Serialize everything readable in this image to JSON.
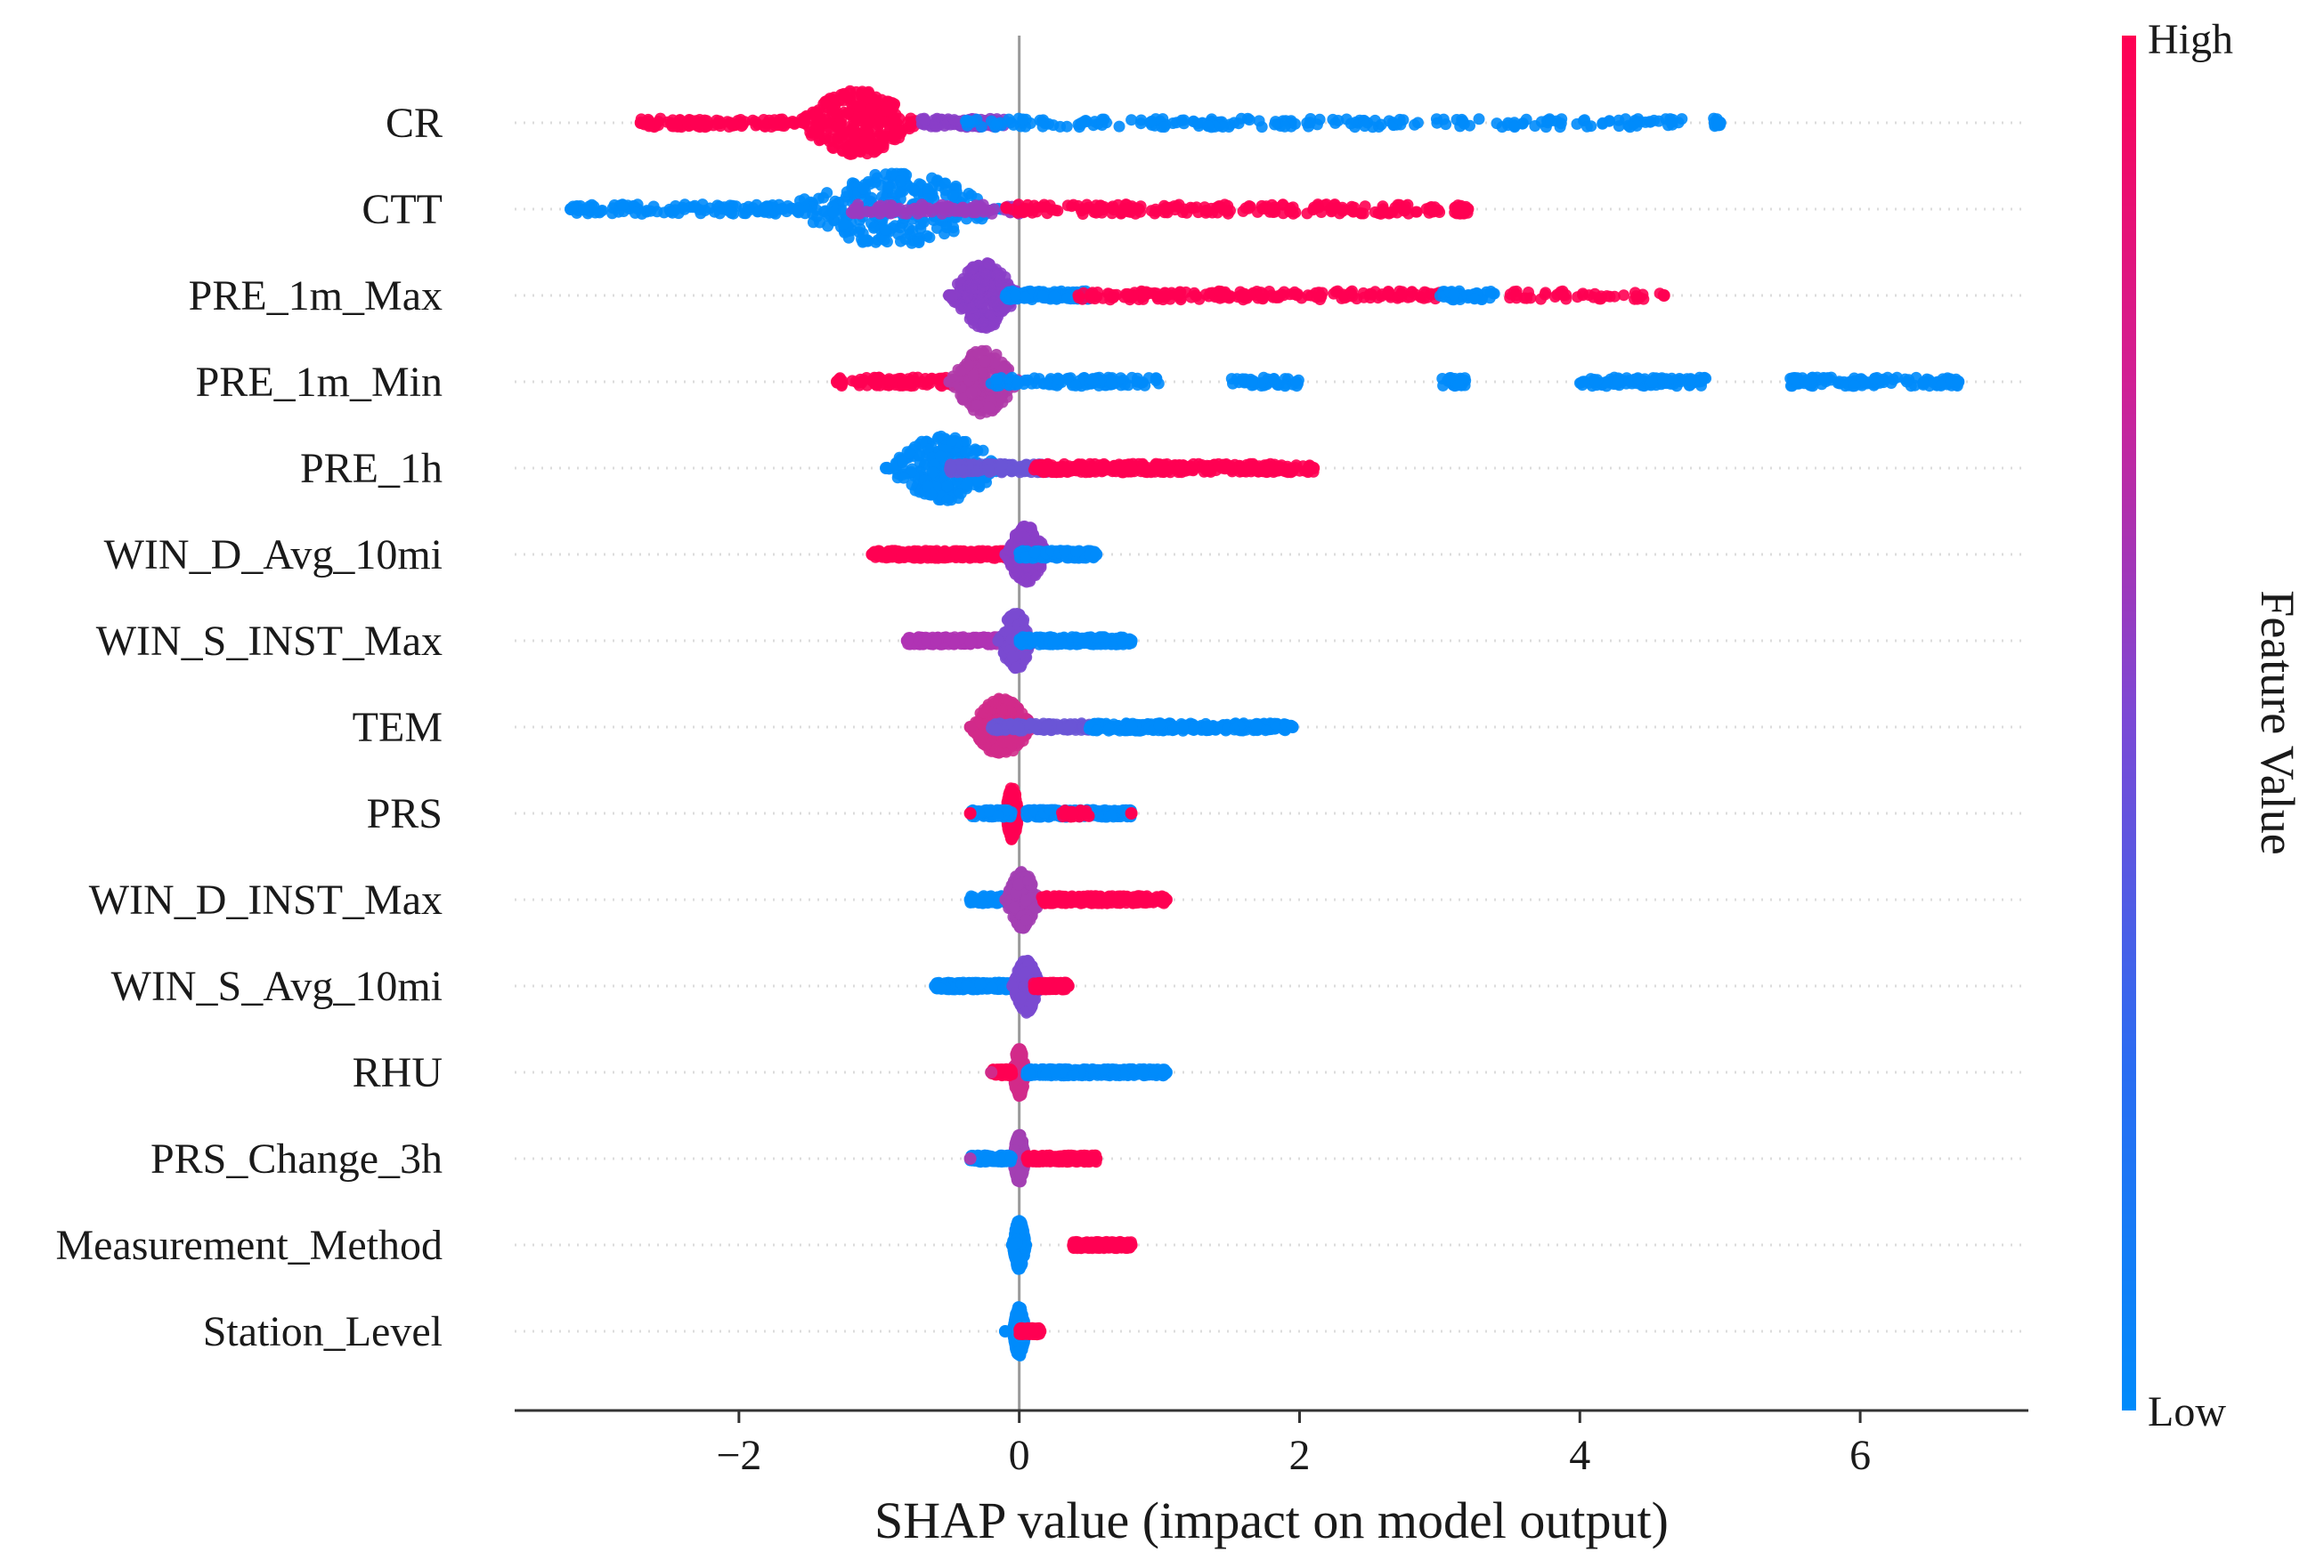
{
  "chart_data": {
    "type": "scatter",
    "subtype": "shap_beeswarm_summary",
    "xlabel": "SHAP value (impact on model output)",
    "xlim": [
      -3.6,
      7.2
    ],
    "xticks": [
      {
        "value": -2,
        "label": "−2"
      },
      {
        "value": 0,
        "label": "0"
      },
      {
        "value": 2,
        "label": "2"
      },
      {
        "value": 4,
        "label": "4"
      },
      {
        "value": 6,
        "label": "6"
      }
    ],
    "colorbar": {
      "title": "Feature Value",
      "high_label": "High",
      "low_label": "Low",
      "high_color": "#ff0052",
      "low_color": "#008bfb"
    },
    "features": [
      {
        "name": "CR",
        "min": -2.7,
        "max": 5.0,
        "spread": 0.34,
        "segments": [
          {
            "from": -2.7,
            "to": -1.6,
            "color": "#ff0052",
            "weight": 0.14
          },
          {
            "from": -1.6,
            "to": -0.7,
            "color": "#ff0052",
            "weight": 0.42,
            "bulge": true
          },
          {
            "from": -0.7,
            "to": -0.1,
            "color": "#8a3ec8",
            "weight": 0.12
          },
          {
            "from": -0.4,
            "to": 4.75,
            "color": "#008bfb",
            "weight": 0.3
          },
          {
            "from": 4.95,
            "to": 5.0,
            "color": "#008bfb",
            "weight": 0.02
          }
        ]
      },
      {
        "name": "CTT",
        "min": -3.2,
        "max": 3.2,
        "spread": 0.38,
        "segments": [
          {
            "from": -3.2,
            "to": -1.7,
            "color": "#008bfb",
            "weight": 0.14
          },
          {
            "from": -1.7,
            "to": -0.1,
            "color": "#008bfb",
            "weight": 0.4,
            "bulge": true
          },
          {
            "from": -1.2,
            "to": 0.0,
            "color": "#9a3bc0",
            "weight": 0.14
          },
          {
            "from": -0.1,
            "to": 3.0,
            "color": "#ff0052",
            "weight": 0.28
          },
          {
            "from": 3.1,
            "to": 3.2,
            "color": "#ff0052",
            "weight": 0.04
          }
        ]
      },
      {
        "name": "PRE_1m_Max",
        "min": -0.5,
        "max": 4.6,
        "spread": 0.34,
        "segments": [
          {
            "from": -0.5,
            "to": 0.0,
            "color": "#8a3ec8",
            "weight": 0.4,
            "bulge": true
          },
          {
            "from": -0.1,
            "to": 0.5,
            "color": "#008bfb",
            "weight": 0.2
          },
          {
            "from": 0.4,
            "to": 3.0,
            "color": "#ff0052",
            "weight": 0.28
          },
          {
            "from": 3.0,
            "to": 3.4,
            "color": "#008bfb",
            "weight": 0.06
          },
          {
            "from": 3.5,
            "to": 4.6,
            "color": "#ff0052",
            "weight": 0.06
          }
        ]
      },
      {
        "name": "PRE_1m_Min",
        "min": -1.3,
        "max": 6.7,
        "spread": 0.34,
        "segments": [
          {
            "from": -1.3,
            "to": -0.4,
            "color": "#ff0052",
            "weight": 0.14
          },
          {
            "from": -0.5,
            "to": 0.0,
            "color": "#b03aa8",
            "weight": 0.3,
            "bulge": true
          },
          {
            "from": -0.2,
            "to": 1.0,
            "color": "#008bfb",
            "weight": 0.14
          },
          {
            "from": 1.5,
            "to": 2.0,
            "color": "#008bfb",
            "weight": 0.06
          },
          {
            "from": 3.0,
            "to": 3.2,
            "color": "#008bfb",
            "weight": 0.04
          },
          {
            "from": 4.0,
            "to": 4.9,
            "color": "#008bfb",
            "weight": 0.16
          },
          {
            "from": 5.5,
            "to": 6.7,
            "color": "#008bfb",
            "weight": 0.16
          }
        ]
      },
      {
        "name": "PRE_1h",
        "min": -0.95,
        "max": 2.1,
        "spread": 0.34,
        "segments": [
          {
            "from": -0.95,
            "to": -0.1,
            "color": "#008bfb",
            "weight": 0.34,
            "bulge": true
          },
          {
            "from": -0.5,
            "to": 0.2,
            "color": "#6a55d6",
            "weight": 0.22
          },
          {
            "from": 0.1,
            "to": 2.1,
            "color": "#ff0052",
            "weight": 0.44
          }
        ]
      },
      {
        "name": "WIN_D_Avg_10mi",
        "min": -1.05,
        "max": 0.55,
        "spread": 0.3,
        "segments": [
          {
            "from": -1.05,
            "to": -0.1,
            "color": "#ff0052",
            "weight": 0.4
          },
          {
            "from": -0.1,
            "to": 0.2,
            "color": "#8a3ec8",
            "weight": 0.34,
            "bulge": true
          },
          {
            "from": 0.0,
            "to": 0.55,
            "color": "#008bfb",
            "weight": 0.26
          }
        ]
      },
      {
        "name": "WIN_S_INST_Max",
        "min": -0.8,
        "max": 0.8,
        "spread": 0.3,
        "segments": [
          {
            "from": -0.8,
            "to": -0.1,
            "color": "#b033b4",
            "weight": 0.34
          },
          {
            "from": -0.15,
            "to": 0.1,
            "color": "#7a4ad0",
            "weight": 0.3,
            "bulge": true
          },
          {
            "from": 0.0,
            "to": 0.8,
            "color": "#008bfb",
            "weight": 0.36
          }
        ]
      },
      {
        "name": "TEM",
        "min": -0.35,
        "max": 1.95,
        "spread": 0.3,
        "segments": [
          {
            "from": -0.35,
            "to": 0.1,
            "color": "#d12a8a",
            "weight": 0.4,
            "bulge": true
          },
          {
            "from": -0.2,
            "to": 0.5,
            "color": "#6a55d6",
            "weight": 0.2
          },
          {
            "from": 0.5,
            "to": 1.95,
            "color": "#008bfb",
            "weight": 0.4
          }
        ]
      },
      {
        "name": "PRS",
        "min": -0.35,
        "max": 0.8,
        "spread": 0.28,
        "segments": [
          {
            "from": -0.1,
            "to": 0.0,
            "color": "#ff0052",
            "weight": 0.38,
            "bulge": true
          },
          {
            "from": -0.35,
            "to": -0.05,
            "color": "#008bfb",
            "weight": 0.14
          },
          {
            "from": 0.05,
            "to": 0.8,
            "color": "#008bfb",
            "weight": 0.42
          },
          {
            "from": 0.3,
            "to": 0.5,
            "color": "#ff0052",
            "weight": 0.06
          }
        ]
      },
      {
        "name": "WIN_D_INST_Max",
        "min": -0.35,
        "max": 1.05,
        "spread": 0.3,
        "segments": [
          {
            "from": -0.35,
            "to": 0.1,
            "color": "#008bfb",
            "weight": 0.2
          },
          {
            "from": -0.1,
            "to": 0.15,
            "color": "#a33fb2",
            "weight": 0.36,
            "bulge": true
          },
          {
            "from": 0.15,
            "to": 1.05,
            "color": "#ff0052",
            "weight": 0.44
          }
        ]
      },
      {
        "name": "WIN_S_Avg_10mi",
        "min": -0.6,
        "max": 0.35,
        "spread": 0.28,
        "segments": [
          {
            "from": -0.6,
            "to": -0.05,
            "color": "#008bfb",
            "weight": 0.38
          },
          {
            "from": -0.05,
            "to": 0.15,
            "color": "#7a4ad0",
            "weight": 0.38,
            "bulge": true
          },
          {
            "from": 0.1,
            "to": 0.35,
            "color": "#ff0052",
            "weight": 0.24
          }
        ]
      },
      {
        "name": "RHU",
        "min": -0.2,
        "max": 1.05,
        "spread": 0.26,
        "segments": [
          {
            "from": -0.05,
            "to": 0.05,
            "color": "#d12a8a",
            "weight": 0.36,
            "bulge": true
          },
          {
            "from": -0.2,
            "to": -0.05,
            "color": "#ff0052",
            "weight": 0.1
          },
          {
            "from": 0.05,
            "to": 1.05,
            "color": "#008bfb",
            "weight": 0.54
          }
        ]
      },
      {
        "name": "PRS_Change_3h",
        "min": -0.35,
        "max": 0.55,
        "spread": 0.26,
        "segments": [
          {
            "from": -0.05,
            "to": 0.05,
            "color": "#a33fb2",
            "weight": 0.4,
            "bulge": true
          },
          {
            "from": -0.35,
            "to": -0.05,
            "color": "#008bfb",
            "weight": 0.24
          },
          {
            "from": 0.05,
            "to": 0.55,
            "color": "#ff0052",
            "weight": 0.36
          }
        ]
      },
      {
        "name": "Measurement_Method",
        "min": -0.05,
        "max": 0.8,
        "spread": 0.26,
        "segments": [
          {
            "from": -0.05,
            "to": 0.05,
            "color": "#008bfb",
            "weight": 0.7,
            "bulge": true
          },
          {
            "from": 0.38,
            "to": 0.8,
            "color": "#ff0052",
            "weight": 0.3
          }
        ]
      },
      {
        "name": "Station_Level",
        "min": -0.1,
        "max": 0.15,
        "spread": 0.26,
        "segments": [
          {
            "from": -0.05,
            "to": 0.05,
            "color": "#008bfb",
            "weight": 0.7,
            "bulge": true
          },
          {
            "from": 0.0,
            "to": 0.15,
            "color": "#ff0052",
            "weight": 0.3
          }
        ]
      }
    ]
  }
}
